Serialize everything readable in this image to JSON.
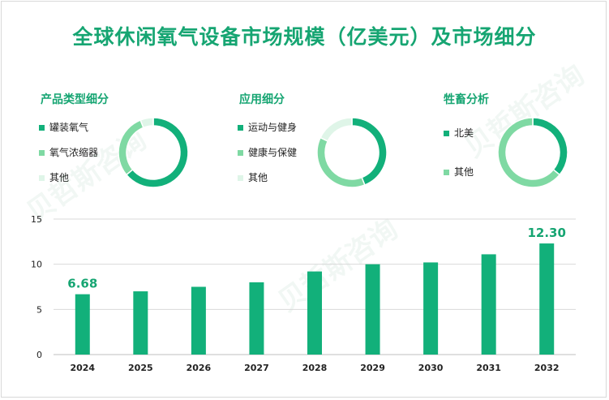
{
  "title": "全球休闲氧气设备市场规模（亿美元）及市场细分",
  "watermark": "贝哲斯咨询",
  "colors": {
    "dark": "#12b07a",
    "mid": "#7fd9a3",
    "light": "#dff5e8",
    "bar": "#12b07a",
    "title": "#16a572"
  },
  "chart_data": [
    {
      "type": "pie",
      "title": "产品类型细分",
      "legend": [
        {
          "label": "罐装氧气",
          "color": "#12b07a"
        },
        {
          "label": "氧气浓缩器",
          "color": "#7fd9a3"
        },
        {
          "label": "其他",
          "color": "#dff5e8"
        }
      ],
      "values": [
        64,
        30,
        6
      ]
    },
    {
      "type": "pie",
      "title": "应用细分",
      "legend": [
        {
          "label": "运动与健身",
          "color": "#12b07a"
        },
        {
          "label": "健康与保健",
          "color": "#7fd9a3"
        },
        {
          "label": "其他",
          "color": "#dff5e8"
        }
      ],
      "values": [
        44,
        38,
        18
      ]
    },
    {
      "type": "pie",
      "title": "牲畜分析",
      "legend": [
        {
          "label": "北美",
          "color": "#12b07a"
        },
        {
          "label": "其他",
          "color": "#7fd9a3"
        }
      ],
      "values": [
        36,
        64
      ]
    },
    {
      "type": "bar",
      "categories": [
        "2024",
        "2025",
        "2026",
        "2027",
        "2028",
        "2029",
        "2030",
        "2031",
        "2032"
      ],
      "values": [
        6.68,
        7.0,
        7.5,
        8.0,
        9.2,
        10.0,
        10.2,
        11.1,
        12.3
      ],
      "labels": [
        "6.68",
        "",
        "",
        "",
        "",
        "",
        "",
        "",
        "12.30"
      ],
      "yticks": [
        "0",
        "5",
        "10",
        "15"
      ],
      "ylim": [
        0,
        15
      ],
      "grid": true
    }
  ]
}
